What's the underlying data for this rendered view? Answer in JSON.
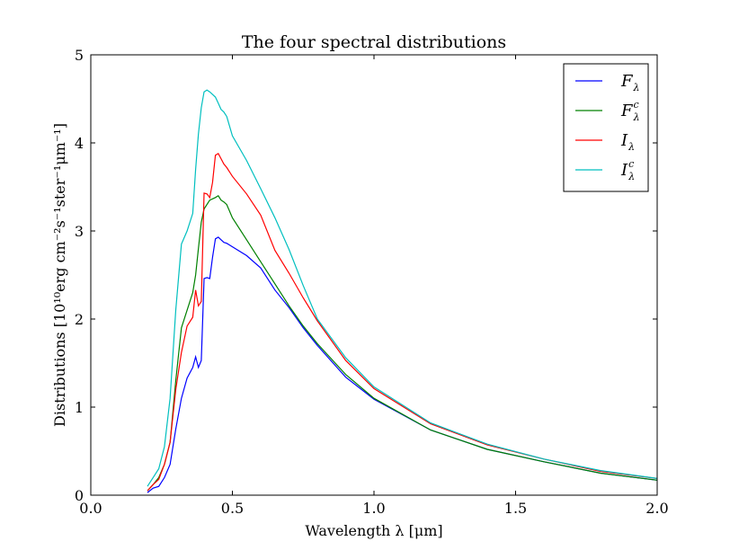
{
  "chart_data": {
    "type": "line",
    "title": "The four spectral distributions",
    "xlabel": "Wavelength λ [μm]",
    "ylabel": "Distributions [10¹⁰erg cm⁻²s⁻¹ster⁻¹μm⁻¹]",
    "xlim": [
      0.0,
      2.0
    ],
    "ylim": [
      0,
      5
    ],
    "xticks": [
      "0.0",
      "0.5",
      "1.0",
      "1.5",
      "2.0"
    ],
    "yticks": [
      "0",
      "1",
      "2",
      "3",
      "4",
      "5"
    ],
    "grid": false,
    "legend_position": "top-right",
    "series": [
      {
        "name": "F_λ",
        "legend_main": "F",
        "legend_sub": "λ",
        "legend_sup": "",
        "color": "#0000ff",
        "x": [
          0.2,
          0.22,
          0.24,
          0.26,
          0.28,
          0.3,
          0.32,
          0.34,
          0.36,
          0.37,
          0.38,
          0.39,
          0.4,
          0.41,
          0.42,
          0.43,
          0.44,
          0.45,
          0.46,
          0.47,
          0.48,
          0.5,
          0.55,
          0.6,
          0.65,
          0.7,
          0.75,
          0.8,
          0.9,
          1.0,
          1.2,
          1.4,
          1.6,
          1.8,
          2.0
        ],
        "y": [
          0.03,
          0.08,
          0.1,
          0.2,
          0.35,
          0.75,
          1.1,
          1.33,
          1.45,
          1.57,
          1.45,
          1.53,
          2.46,
          2.47,
          2.46,
          2.7,
          2.91,
          2.93,
          2.9,
          2.87,
          2.86,
          2.82,
          2.72,
          2.58,
          2.33,
          2.13,
          1.9,
          1.7,
          1.34,
          1.09,
          0.74,
          0.52,
          0.38,
          0.25,
          0.17
        ]
      },
      {
        "name": "F_λ^c",
        "legend_main": "F",
        "legend_sub": "λ",
        "legend_sup": "c",
        "color": "#008000",
        "x": [
          0.2,
          0.22,
          0.24,
          0.26,
          0.28,
          0.3,
          0.32,
          0.34,
          0.36,
          0.37,
          0.38,
          0.39,
          0.4,
          0.42,
          0.44,
          0.45,
          0.46,
          0.47,
          0.48,
          0.5,
          0.55,
          0.6,
          0.65,
          0.7,
          0.75,
          0.8,
          0.9,
          1.0,
          1.2,
          1.4,
          1.6,
          1.8,
          2.0
        ],
        "y": [
          0.05,
          0.12,
          0.2,
          0.35,
          0.6,
          1.3,
          1.9,
          2.1,
          2.3,
          2.5,
          2.8,
          3.1,
          3.25,
          3.35,
          3.38,
          3.4,
          3.35,
          3.33,
          3.3,
          3.15,
          2.9,
          2.65,
          2.4,
          2.15,
          1.92,
          1.72,
          1.37,
          1.1,
          0.74,
          0.52,
          0.38,
          0.25,
          0.17
        ]
      },
      {
        "name": "I_λ",
        "legend_main": "I",
        "legend_sub": "λ",
        "legend_sup": "",
        "color": "#ff0000",
        "x": [
          0.2,
          0.22,
          0.24,
          0.26,
          0.28,
          0.3,
          0.32,
          0.34,
          0.36,
          0.37,
          0.38,
          0.39,
          0.4,
          0.41,
          0.42,
          0.43,
          0.44,
          0.45,
          0.46,
          0.47,
          0.48,
          0.5,
          0.55,
          0.6,
          0.65,
          0.7,
          0.75,
          0.8,
          0.9,
          1.0,
          1.2,
          1.4,
          1.6,
          1.8,
          2.0
        ],
        "y": [
          0.05,
          0.12,
          0.18,
          0.35,
          0.6,
          1.2,
          1.62,
          1.92,
          2.02,
          2.33,
          2.15,
          2.2,
          3.43,
          3.42,
          3.38,
          3.55,
          3.86,
          3.88,
          3.82,
          3.76,
          3.72,
          3.62,
          3.42,
          3.18,
          2.78,
          2.52,
          2.24,
          1.98,
          1.53,
          1.21,
          0.81,
          0.57,
          0.41,
          0.27,
          0.19
        ]
      },
      {
        "name": "I_λ^c",
        "legend_main": "I",
        "legend_sub": "λ",
        "legend_sup": "c",
        "color": "#00bfbf",
        "x": [
          0.2,
          0.22,
          0.24,
          0.26,
          0.28,
          0.3,
          0.32,
          0.34,
          0.36,
          0.37,
          0.38,
          0.39,
          0.4,
          0.41,
          0.42,
          0.43,
          0.44,
          0.45,
          0.46,
          0.47,
          0.48,
          0.5,
          0.55,
          0.6,
          0.65,
          0.7,
          0.75,
          0.8,
          0.9,
          1.0,
          1.2,
          1.4,
          1.6,
          1.8,
          2.0
        ],
        "y": [
          0.1,
          0.2,
          0.3,
          0.55,
          1.1,
          2.1,
          2.85,
          3.0,
          3.2,
          3.7,
          4.1,
          4.4,
          4.58,
          4.6,
          4.58,
          4.55,
          4.52,
          4.45,
          4.38,
          4.35,
          4.3,
          4.08,
          3.8,
          3.48,
          3.15,
          2.79,
          2.38,
          2.0,
          1.56,
          1.23,
          0.82,
          0.58,
          0.41,
          0.28,
          0.19
        ]
      }
    ]
  }
}
